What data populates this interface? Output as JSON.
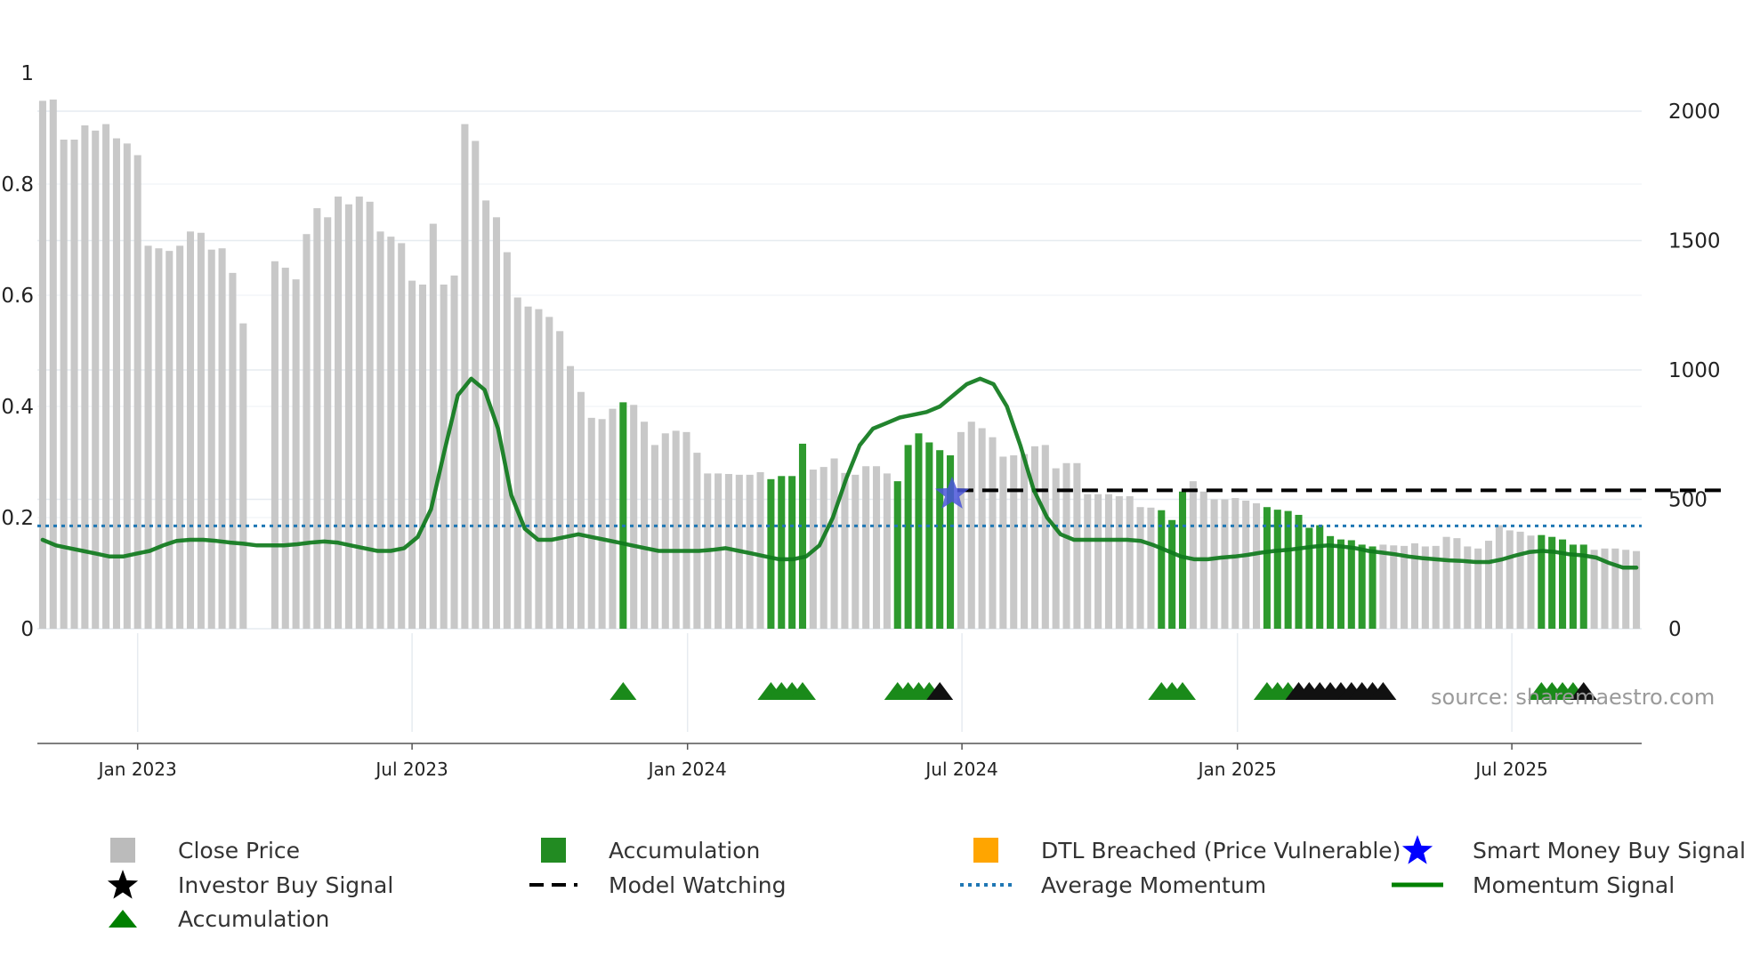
{
  "chart_data": {
    "type": "bar",
    "source_label": "source: sharemaestro.com",
    "x_ticks": [
      "Jan 2023",
      "Jul 2023",
      "Jan 2024",
      "Jul 2024",
      "Jan 2025",
      "Jul 2025"
    ],
    "y_left": {
      "ticks": [
        "0",
        "0.2",
        "0.4",
        "0.6",
        "0.8",
        "1"
      ],
      "range": [
        0,
        1
      ]
    },
    "y_right": {
      "ticks": [
        "0",
        "500",
        "1000",
        "1500",
        "2000"
      ],
      "range": [
        0,
        2150
      ]
    },
    "close_price": [
      2040,
      2045,
      1890,
      1890,
      1945,
      1925,
      1950,
      1895,
      1875,
      1830,
      1480,
      1470,
      1460,
      1480,
      1535,
      1530,
      1465,
      1470,
      1375,
      1180,
      null,
      null,
      1420,
      1395,
      1350,
      1525,
      1625,
      1590,
      1670,
      1640,
      1670,
      1650,
      1535,
      1515,
      1490,
      1345,
      1330,
      1565,
      1330,
      1365,
      1950,
      1885,
      1655,
      1590,
      1455,
      1280,
      1245,
      1235,
      1205,
      1150,
      1015,
      915,
      815,
      810,
      850,
      875,
      865,
      800,
      710,
      755,
      765,
      760,
      680,
      600,
      600,
      598,
      595,
      595,
      605,
      578,
      590,
      590,
      715,
      615,
      625,
      658,
      602,
      595,
      628,
      628,
      600,
      570,
      710,
      755,
      720,
      690,
      670,
      760,
      800,
      775,
      740,
      665,
      670,
      675,
      705,
      710,
      620,
      640,
      640,
      520,
      520,
      520,
      512,
      512,
      470,
      468,
      458,
      420,
      530,
      570,
      530,
      500,
      500,
      505,
      495,
      485,
      470,
      460,
      455,
      440,
      390,
      400,
      358,
      345,
      342,
      325,
      318,
      325,
      322,
      320,
      330,
      318,
      320,
      355,
      350,
      318,
      310,
      340,
      400,
      380,
      375,
      360,
      362,
      355,
      345,
      325,
      325,
      305,
      310,
      310,
      305,
      300
    ],
    "accumulation_bar_indices": [
      55,
      69,
      70,
      71,
      72,
      81,
      82,
      83,
      84,
      85,
      86,
      106,
      107,
      108,
      116,
      117,
      118,
      119,
      120,
      121,
      122,
      123,
      124,
      125,
      126,
      142,
      143,
      144,
      145,
      146
    ],
    "momentum_signal": [
      0.16,
      0.15,
      0.145,
      0.14,
      0.135,
      0.13,
      0.13,
      0.135,
      0.14,
      0.15,
      0.158,
      0.16,
      0.16,
      0.158,
      0.155,
      0.153,
      0.15,
      0.15,
      0.15,
      0.152,
      0.155,
      0.157,
      0.155,
      0.15,
      0.145,
      0.14,
      0.14,
      0.145,
      0.165,
      0.215,
      0.32,
      0.42,
      0.45,
      0.43,
      0.36,
      0.24,
      0.18,
      0.16,
      0.16,
      0.165,
      0.17,
      0.165,
      0.16,
      0.155,
      0.15,
      0.145,
      0.14,
      0.14,
      0.14,
      0.14,
      0.142,
      0.145,
      0.14,
      0.135,
      0.13,
      0.125,
      0.125,
      0.13,
      0.15,
      0.2,
      0.27,
      0.33,
      0.36,
      0.37,
      0.38,
      0.385,
      0.39,
      0.4,
      0.42,
      0.44,
      0.45,
      0.44,
      0.4,
      0.33,
      0.25,
      0.2,
      0.17,
      0.16,
      0.16,
      0.16,
      0.16,
      0.16,
      0.158,
      0.15,
      0.14,
      0.13,
      0.125,
      0.125,
      0.128,
      0.13,
      0.133,
      0.137,
      0.14,
      0.142,
      0.145,
      0.148,
      0.15,
      0.148,
      0.145,
      0.14,
      0.137,
      0.134,
      0.13,
      0.127,
      0.125,
      0.123,
      0.122,
      0.12,
      0.12,
      0.125,
      0.132,
      0.138,
      0.14,
      0.138,
      0.134,
      0.132,
      0.128,
      0.118,
      0.11,
      0.11
    ],
    "average_momentum": 0.185,
    "model_watching": {
      "level": 535,
      "start_index": 87,
      "end_index": 159
    },
    "smart_money_buy_signal": {
      "index": 86,
      "value": 0.25
    },
    "accumulation_marker_indices": [
      55,
      69,
      70,
      71,
      72,
      81,
      82,
      83,
      84,
      106,
      107,
      108,
      116,
      117,
      118,
      142,
      143,
      144,
      145
    ],
    "investor_buy_marker_indices": [
      85,
      119,
      120,
      121,
      122,
      123,
      124,
      125,
      126,
      127,
      146
    ],
    "legend": [
      {
        "label": "Close Price",
        "color": "#bbbbbb",
        "symbol": "square"
      },
      {
        "label": "Accumulation",
        "color": "#228b22",
        "symbol": "square"
      },
      {
        "label": "DTL Breached (Price Vulnerable)",
        "color": "#ffa500",
        "symbol": "square"
      },
      {
        "label": "Smart Money Buy Signal",
        "color": "#0000ff",
        "symbol": "star"
      },
      {
        "label": "Investor Buy Signal",
        "color": "#000000",
        "symbol": "star"
      },
      {
        "label": "Model Watching",
        "color": "#000000",
        "symbol": "dash"
      },
      {
        "label": "Average Momentum",
        "color": "#1f77b4",
        "symbol": "dot"
      },
      {
        "label": "Momentum Signal",
        "color": "#008000",
        "symbol": "line"
      },
      {
        "label": "Accumulation",
        "color": "#008000",
        "symbol": "triangle"
      }
    ]
  }
}
